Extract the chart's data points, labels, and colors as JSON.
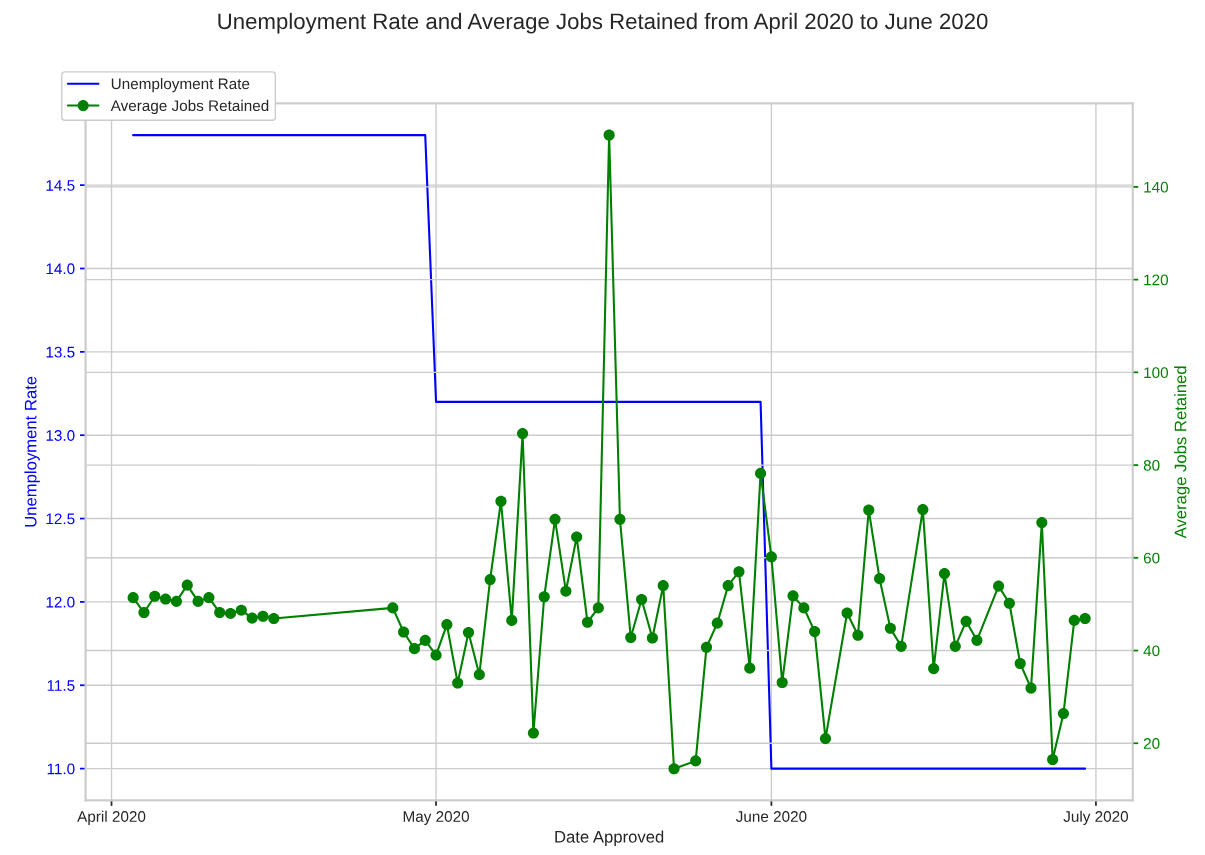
{
  "chart_data": {
    "type": "line",
    "title": "Unemployment Rate and Average Jobs Retained from April 2020 to June 2020",
    "xlabel": "Date Approved",
    "ylabel": "Unemployment Rate",
    "y2label": "Average Jobs Retained",
    "xlim": [
      "2020-03-29T14:24",
      "2020-07-04T09:36"
    ],
    "xticks": [
      {
        "value": "2020-04-01",
        "label": "April 2020"
      },
      {
        "value": "2020-05-01",
        "label": "May 2020"
      },
      {
        "value": "2020-06-01",
        "label": "June 2020"
      },
      {
        "value": "2020-07-01",
        "label": "July 2020"
      }
    ],
    "ylim": [
      10.81,
      14.99
    ],
    "yticks": [
      {
        "value": 11.0,
        "label": "11.0"
      },
      11.5,
      {
        "value": 12.0,
        "label": "12.0"
      },
      12.5,
      {
        "value": 13.0,
        "label": "13.0"
      },
      13.5,
      {
        "value": 14.0,
        "label": "14.0"
      },
      14.5
    ],
    "y2lim": [
      7.7,
      158.0
    ],
    "y2ticks": [
      20,
      40,
      60,
      80,
      100,
      120,
      140
    ],
    "grid": true,
    "legend": "top left",
    "series": [
      {
        "name": "Unemployment Rate",
        "color": "#0000ff",
        "marker": "none",
        "x": [
          "2020-04-03",
          "2020-04-30",
          "2020-05-01",
          "2020-05-31",
          "2020-06-01",
          "2020-06-30"
        ],
        "values": [
          14.8,
          14.8,
          13.2,
          13.2,
          11.0,
          11.0
        ]
      },
      {
        "name": "Average Jobs Retained",
        "color": "#008000",
        "marker": "circle",
        "axis": "y2",
        "x": [
          "2020-04-03",
          "2020-04-04",
          "2020-04-05",
          "2020-04-06",
          "2020-04-07",
          "2020-04-08",
          "2020-04-09",
          "2020-04-10",
          "2020-04-11",
          "2020-04-12",
          "2020-04-13",
          "2020-04-14",
          "2020-04-15",
          "2020-04-16",
          "2020-04-27",
          "2020-04-28",
          "2020-04-29",
          "2020-04-30",
          "2020-05-01",
          "2020-05-02",
          "2020-05-03",
          "2020-05-04",
          "2020-05-05",
          "2020-05-06",
          "2020-05-07",
          "2020-05-08",
          "2020-05-09",
          "2020-05-10",
          "2020-05-11",
          "2020-05-12",
          "2020-05-13",
          "2020-05-14",
          "2020-05-15",
          "2020-05-16",
          "2020-05-17",
          "2020-05-18",
          "2020-05-19",
          "2020-05-20",
          "2020-05-21",
          "2020-05-22",
          "2020-05-23",
          "2020-05-25",
          "2020-05-26",
          "2020-05-27",
          "2020-05-28",
          "2020-05-29",
          "2020-05-30",
          "2020-05-31",
          "2020-06-01",
          "2020-06-02",
          "2020-06-03",
          "2020-06-04",
          "2020-06-05",
          "2020-06-06",
          "2020-06-08",
          "2020-06-09",
          "2020-06-10",
          "2020-06-11",
          "2020-06-12",
          "2020-06-13",
          "2020-06-15",
          "2020-06-16",
          "2020-06-17",
          "2020-06-18",
          "2020-06-19",
          "2020-06-20",
          "2020-06-22",
          "2020-06-23",
          "2020-06-24",
          "2020-06-25",
          "2020-06-26",
          "2020-06-27",
          "2020-06-28",
          "2020-06-29",
          "2020-06-30"
        ],
        "values": [
          51.4,
          48.2,
          51.7,
          51.1,
          50.6,
          54.1,
          50.6,
          51.4,
          48.2,
          48.0,
          48.7,
          47.0,
          47.4,
          46.9,
          49.2,
          44.0,
          40.4,
          42.2,
          39.0,
          45.6,
          33.0,
          43.9,
          34.8,
          55.3,
          72.2,
          46.5,
          86.8,
          22.2,
          51.6,
          68.3,
          52.8,
          64.5,
          46.1,
          49.2,
          151.2,
          68.3,
          42.8,
          51.0,
          42.7,
          54.0,
          14.5,
          16.2,
          40.7,
          45.9,
          54.0,
          57.0,
          36.2,
          78.2,
          60.2,
          33.1,
          51.8,
          49.2,
          44.1,
          21.0,
          48.1,
          43.3,
          70.3,
          55.5,
          44.8,
          40.9,
          70.4,
          36.1,
          56.6,
          40.9,
          46.3,
          42.2,
          53.9,
          50.2,
          37.2,
          31.9,
          67.6,
          16.5,
          26.4,
          46.5,
          46.9
        ]
      }
    ]
  }
}
